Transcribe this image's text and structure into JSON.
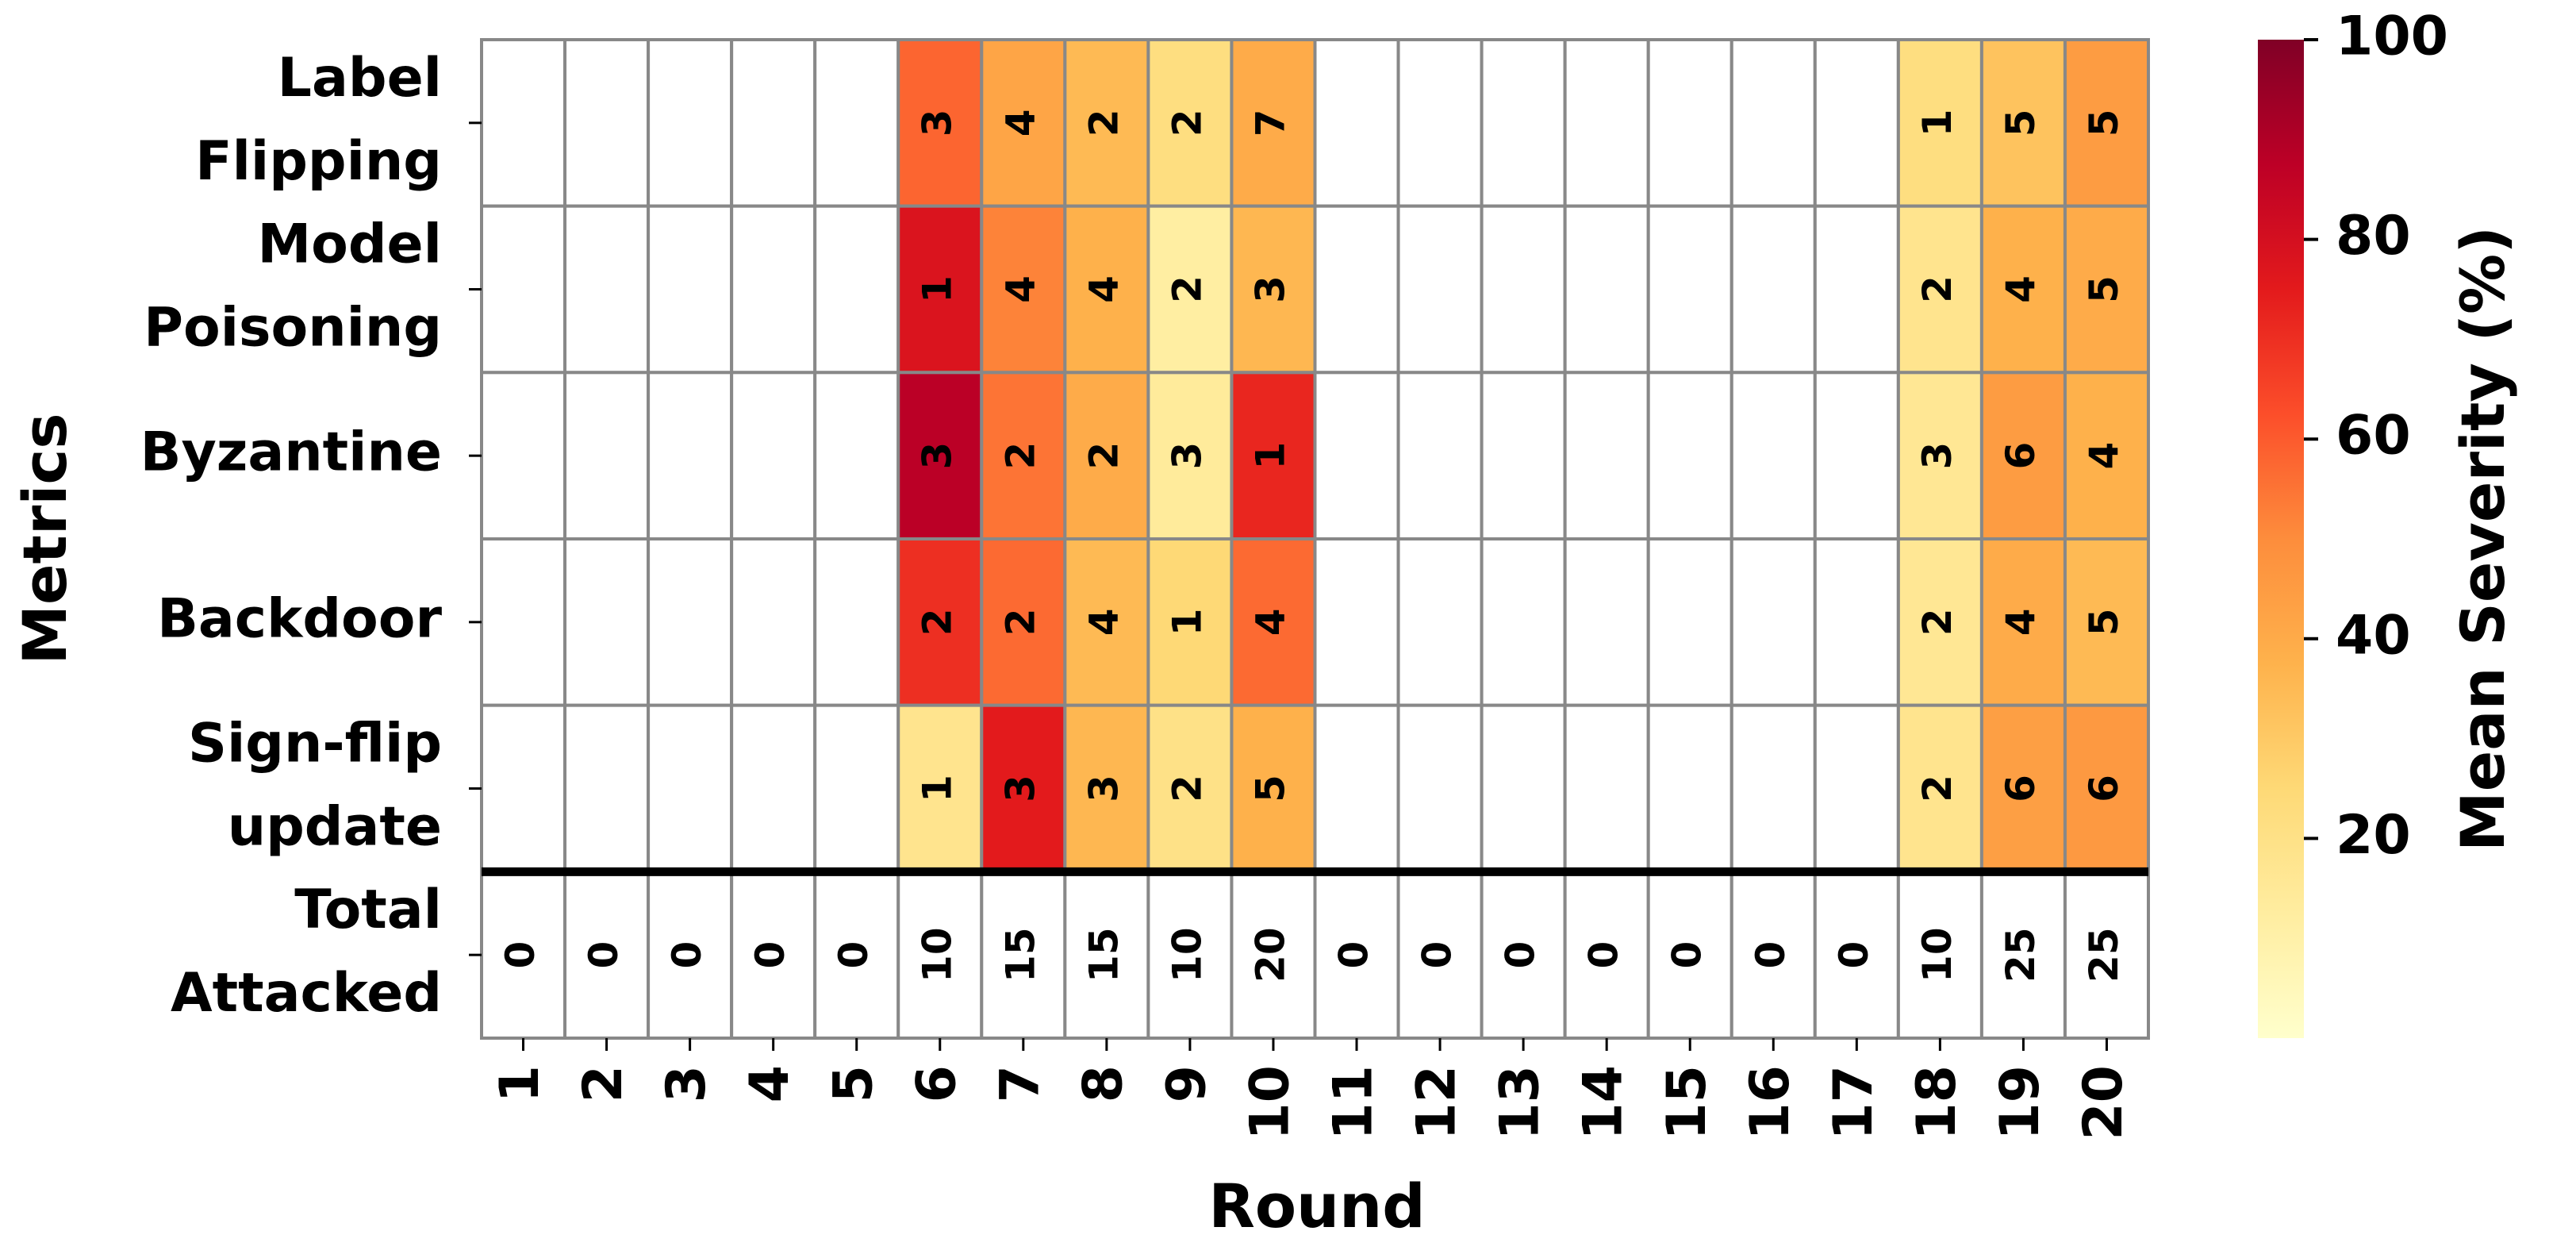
{
  "chart_data": {
    "type": "heatmap",
    "x_label": "Round",
    "y_label": "Metrics",
    "colorbar_label": "Mean Severity (%)",
    "categories": [
      1,
      2,
      3,
      4,
      5,
      6,
      7,
      8,
      9,
      10,
      11,
      12,
      13,
      14,
      15,
      16,
      17,
      18,
      19,
      20
    ],
    "rows": [
      {
        "name": [
          "Label",
          "Flipping"
        ],
        "severity": [
          null,
          null,
          null,
          null,
          null,
          58,
          42,
          35,
          22,
          40,
          null,
          null,
          null,
          null,
          null,
          null,
          null,
          22,
          32,
          45
        ],
        "attacks": [
          null,
          null,
          null,
          null,
          null,
          3,
          4,
          2,
          2,
          7,
          null,
          null,
          null,
          null,
          null,
          null,
          null,
          1,
          5,
          5
        ]
      },
      {
        "name": [
          "Model",
          "Poisoning"
        ],
        "severity": [
          null,
          null,
          null,
          null,
          null,
          78,
          52,
          38,
          12,
          36,
          null,
          null,
          null,
          null,
          null,
          null,
          null,
          18,
          38,
          40
        ],
        "attacks": [
          null,
          null,
          null,
          null,
          null,
          1,
          4,
          4,
          2,
          3,
          null,
          null,
          null,
          null,
          null,
          null,
          null,
          2,
          4,
          5
        ]
      },
      {
        "name": [
          "Byzantine"
        ],
        "severity": [
          null,
          null,
          null,
          null,
          null,
          88,
          55,
          40,
          14,
          72,
          null,
          null,
          null,
          null,
          null,
          null,
          null,
          16,
          45,
          38
        ],
        "attacks": [
          null,
          null,
          null,
          null,
          null,
          3,
          2,
          2,
          3,
          1,
          null,
          null,
          null,
          null,
          null,
          null,
          null,
          3,
          6,
          4
        ]
      },
      {
        "name": [
          "Backdoor"
        ],
        "severity": [
          null,
          null,
          null,
          null,
          null,
          70,
          57,
          35,
          25,
          57,
          null,
          null,
          null,
          null,
          null,
          null,
          null,
          16,
          40,
          35
        ],
        "attacks": [
          null,
          null,
          null,
          null,
          null,
          2,
          2,
          4,
          1,
          4,
          null,
          null,
          null,
          null,
          null,
          null,
          null,
          2,
          4,
          5
        ]
      },
      {
        "name": [
          "Sign-flip",
          "update"
        ],
        "severity": [
          null,
          null,
          null,
          null,
          null,
          18,
          75,
          36,
          20,
          38,
          null,
          null,
          null,
          null,
          null,
          null,
          null,
          18,
          44,
          46
        ],
        "attacks": [
          null,
          null,
          null,
          null,
          null,
          1,
          3,
          3,
          2,
          5,
          null,
          null,
          null,
          null,
          null,
          null,
          null,
          2,
          6,
          6
        ]
      },
      {
        "name": [
          "Total",
          "Attacked"
        ],
        "attacks": [
          0,
          0,
          0,
          0,
          0,
          10,
          15,
          15,
          10,
          20,
          0,
          0,
          0,
          0,
          0,
          0,
          0,
          10,
          25,
          25
        ]
      }
    ],
    "colormap": [
      "#ffffcc",
      "#ffeda0",
      "#fed976",
      "#feb24c",
      "#fd8d3c",
      "#fc4e2a",
      "#e31a1c",
      "#bd0026",
      "#800026"
    ],
    "clim": [
      0,
      100
    ],
    "cticks": [
      20,
      40,
      60,
      80,
      100
    ]
  }
}
